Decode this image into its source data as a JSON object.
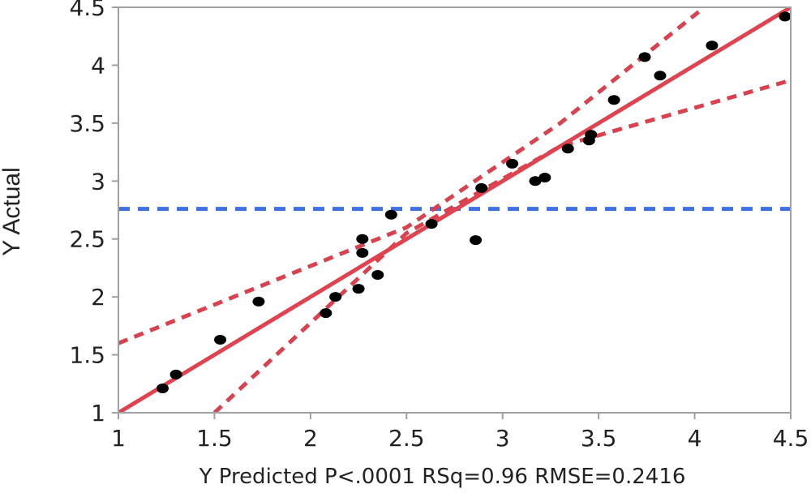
{
  "chart_data": {
    "type": "scatter",
    "title": "",
    "xlabel": "Y Predicted P<.0001 RSq=0.96 RMSE=0.2416",
    "ylabel": "Y Actual",
    "xlim": [
      1,
      4.5
    ],
    "ylim": [
      1,
      4.5
    ],
    "x_ticks": [
      "1",
      "1.5",
      "2",
      "2.5",
      "3",
      "3.5",
      "4",
      "4.5"
    ],
    "y_ticks": [
      "1",
      "1.5",
      "2",
      "2.5",
      "3",
      "3.5",
      "4",
      "4.5"
    ],
    "grid": false,
    "legend": "none",
    "points": [
      {
        "x": 1.23,
        "y": 1.21
      },
      {
        "x": 1.3,
        "y": 1.33
      },
      {
        "x": 1.53,
        "y": 1.63
      },
      {
        "x": 1.73,
        "y": 1.96
      },
      {
        "x": 2.08,
        "y": 1.86
      },
      {
        "x": 2.13,
        "y": 2.0
      },
      {
        "x": 2.25,
        "y": 2.07
      },
      {
        "x": 2.27,
        "y": 2.5
      },
      {
        "x": 2.27,
        "y": 2.38
      },
      {
        "x": 2.35,
        "y": 2.19
      },
      {
        "x": 2.42,
        "y": 2.71
      },
      {
        "x": 2.63,
        "y": 2.63
      },
      {
        "x": 2.86,
        "y": 2.49
      },
      {
        "x": 2.89,
        "y": 2.94
      },
      {
        "x": 3.05,
        "y": 3.15
      },
      {
        "x": 3.17,
        "y": 3.0
      },
      {
        "x": 3.22,
        "y": 3.03
      },
      {
        "x": 3.34,
        "y": 3.28
      },
      {
        "x": 3.45,
        "y": 3.35
      },
      {
        "x": 3.46,
        "y": 3.4
      },
      {
        "x": 3.58,
        "y": 3.7
      },
      {
        "x": 3.74,
        "y": 4.07
      },
      {
        "x": 3.82,
        "y": 3.91
      },
      {
        "x": 4.09,
        "y": 4.17
      },
      {
        "x": 4.47,
        "y": 4.42
      }
    ],
    "fit_line": {
      "x": [
        1,
        4.5
      ],
      "y": [
        1,
        4.5
      ],
      "color": "#e0434f"
    },
    "confidence_band": {
      "color": "#d9414f",
      "upper": [
        [
          1,
          1.6
        ],
        [
          2.5,
          2.6
        ],
        [
          3.3,
          3.5
        ],
        [
          4.05,
          4.5
        ]
      ],
      "lower": [
        [
          1.5,
          1.0
        ],
        [
          2.5,
          2.55
        ],
        [
          3.3,
          3.3
        ],
        [
          4.5,
          3.87
        ]
      ]
    },
    "mean_line": {
      "y": 2.76,
      "color": "#3f6fe0"
    },
    "point_color": "#000000"
  }
}
